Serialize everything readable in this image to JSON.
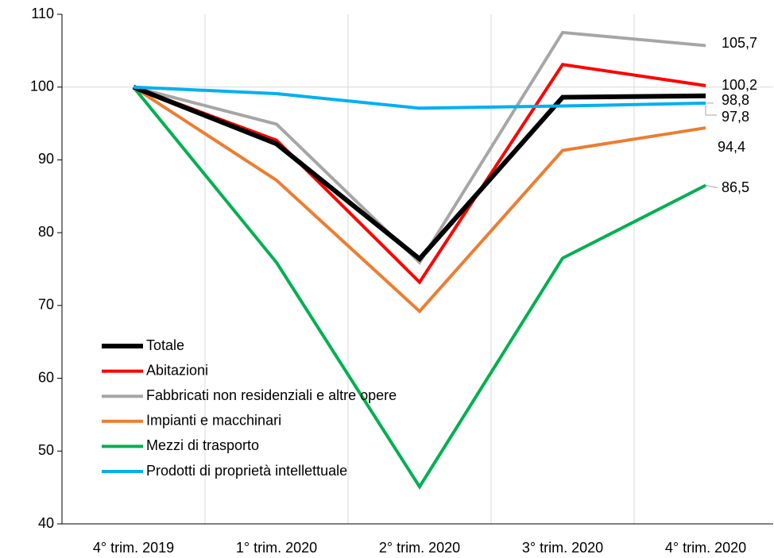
{
  "chart_data": {
    "type": "line",
    "title": "",
    "xlabel": "",
    "ylabel": "",
    "categories": [
      "4° trim.  2019",
      "1° trim. 2020",
      "2° trim. 2020",
      "3° trim. 2020",
      "4° trim. 2020"
    ],
    "ylim": [
      40,
      110
    ],
    "yticks": [
      40,
      50,
      60,
      70,
      80,
      90,
      100,
      110
    ],
    "grid": "vertical",
    "legend_position": "bottom-left",
    "series": [
      {
        "name": "Totale",
        "color": "#000000",
        "values": [
          100,
          92.2,
          76.4,
          98.6,
          98.8
        ],
        "end_label": "98,8"
      },
      {
        "name": "Abitazioni",
        "color": "#ff0000",
        "values": [
          100,
          92.7,
          73.2,
          103.1,
          100.2
        ],
        "end_label": "100,2"
      },
      {
        "name": "Fabbricati non residenziali e altre opere",
        "color": "#a6a6a6",
        "values": [
          100,
          94.9,
          75.9,
          107.5,
          105.7
        ],
        "end_label": "105,7"
      },
      {
        "name": "Impianti e macchinari",
        "color": "#ed7d31",
        "values": [
          100,
          87.2,
          69.2,
          91.3,
          94.4
        ],
        "end_label": "94,4"
      },
      {
        "name": "Mezzi di trasporto",
        "color": "#00b050",
        "values": [
          100,
          75.9,
          45.1,
          76.5,
          86.5
        ],
        "end_label": "86,5"
      },
      {
        "name": "Prodotti di proprietà intellettuale",
        "color": "#00b0f0",
        "values": [
          100,
          99.1,
          97.1,
          97.4,
          97.8
        ],
        "end_label": "97,8"
      }
    ]
  }
}
